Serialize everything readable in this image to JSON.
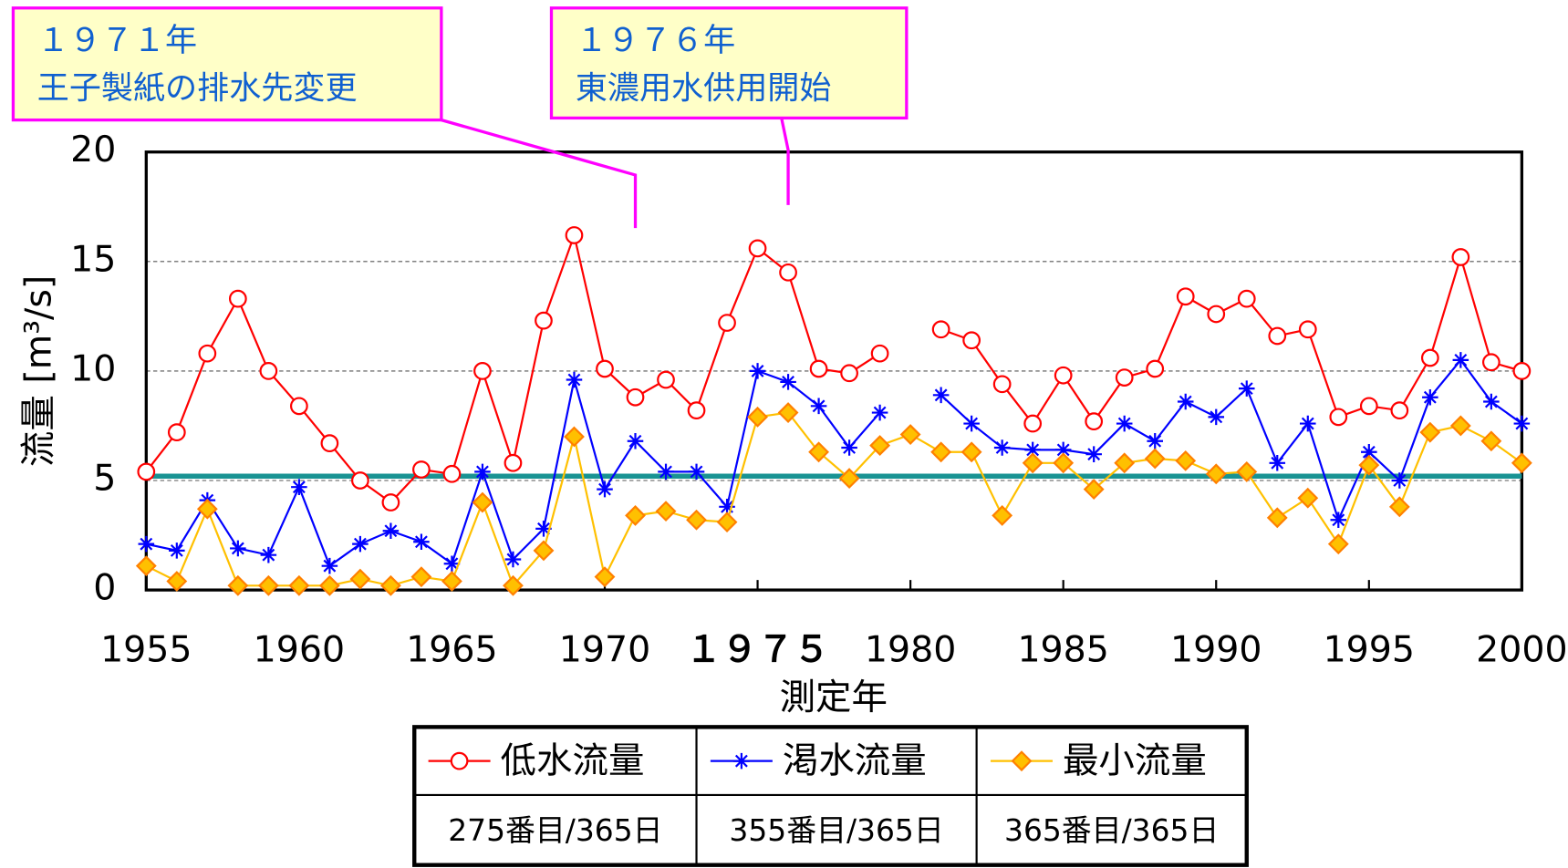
{
  "chart_data": {
    "type": "line",
    "x_label": "測定年",
    "y_label": "流量 [m³/s]",
    "xlim": [
      1955,
      2000
    ],
    "ylim": [
      0,
      20
    ],
    "xticks": [
      1955,
      1960,
      1965,
      1970,
      {
        "value": 1975,
        "label": "１９７５"
      },
      1980,
      1985,
      1990,
      1995,
      2000
    ],
    "yticks": [
      0,
      5,
      10,
      15,
      20
    ],
    "grid": true,
    "x": [
      1955,
      1956,
      1957,
      1958,
      1959,
      1960,
      1961,
      1962,
      1963,
      1964,
      1965,
      1966,
      1967,
      1968,
      1969,
      1970,
      1971,
      1972,
      1973,
      1974,
      1975,
      1976,
      1977,
      1978,
      1979,
      1980,
      1981,
      1982,
      1983,
      1984,
      1985,
      1986,
      1987,
      1988,
      1989,
      1990,
      1991,
      1992,
      1993,
      1994,
      1995,
      1996,
      1997,
      1998,
      1999,
      2000
    ],
    "series": [
      {
        "name": "低水流量",
        "description": "275番目/365日",
        "color": "#ff0000",
        "marker": "circle",
        "values": [
          5.4,
          7.2,
          10.8,
          13.3,
          10.0,
          8.4,
          6.7,
          5.0,
          4.0,
          5.5,
          5.3,
          10.0,
          5.8,
          12.3,
          16.2,
          10.1,
          8.8,
          9.6,
          8.2,
          12.2,
          15.6,
          14.5,
          10.1,
          9.9,
          10.8,
          null,
          11.9,
          11.4,
          9.4,
          7.6,
          9.8,
          7.7,
          9.7,
          10.1,
          13.4,
          12.6,
          13.3,
          11.6,
          11.9,
          7.9,
          8.4,
          8.2,
          10.6,
          15.2,
          10.4,
          10.0
        ]
      },
      {
        "name": "渇水流量",
        "description": "355番目/365日",
        "color": "#0000ff",
        "marker": "asterisk",
        "values": [
          2.1,
          1.8,
          4.1,
          1.9,
          1.6,
          4.7,
          1.1,
          2.1,
          2.7,
          2.2,
          1.2,
          5.4,
          1.4,
          2.8,
          9.6,
          4.6,
          6.8,
          5.4,
          5.4,
          3.8,
          10.0,
          9.5,
          8.4,
          6.5,
          8.1,
          null,
          8.9,
          7.6,
          6.5,
          6.4,
          6.4,
          6.2,
          7.6,
          6.8,
          8.6,
          7.9,
          9.2,
          5.8,
          7.6,
          3.2,
          6.3,
          5.0,
          8.8,
          10.5,
          8.6,
          7.6
        ]
      },
      {
        "name": "最小流量",
        "description": "365番目/365日",
        "color": "#ffc000",
        "marker": "diamond",
        "values": [
          1.1,
          0.4,
          3.7,
          0.2,
          0.2,
          0.2,
          0.2,
          0.5,
          0.2,
          0.6,
          0.4,
          4.0,
          0.2,
          1.8,
          7.0,
          0.6,
          3.4,
          3.6,
          3.2,
          3.1,
          7.9,
          8.1,
          6.3,
          5.1,
          6.6,
          7.1,
          6.3,
          6.3,
          3.4,
          5.8,
          5.8,
          4.6,
          5.8,
          6.0,
          5.9,
          5.3,
          5.4,
          3.3,
          4.2,
          2.1,
          5.7,
          3.8,
          7.2,
          7.5,
          6.8,
          5.8
        ]
      }
    ],
    "reference_line": {
      "value": 5.2,
      "color": "#199393"
    },
    "annotations": [
      {
        "x": 1971,
        "lines": [
          "１９７１年",
          "王子製紙の排水先変更"
        ]
      },
      {
        "x": 1976,
        "lines": [
          "１９７６年",
          "東濃用水供用開始"
        ]
      }
    ]
  }
}
